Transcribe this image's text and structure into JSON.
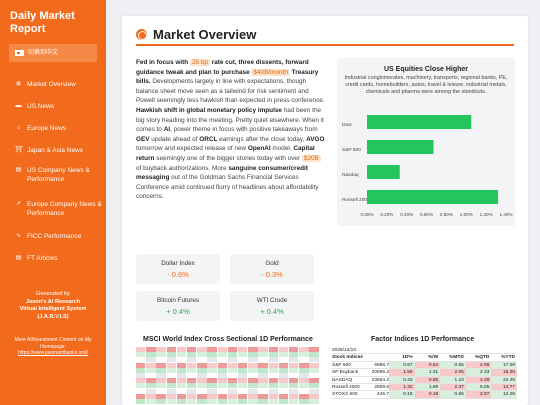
{
  "sidebar": {
    "brand": "Daily Market Report",
    "language_button": "切换到中文",
    "nav": [
      {
        "label": "Market Overview",
        "icon": "globe-icon",
        "glyph": "◍"
      },
      {
        "label": "US News",
        "icon": "flag-icon",
        "glyph": "▬"
      },
      {
        "label": "Europe News",
        "icon": "bank-icon",
        "glyph": "⌂"
      },
      {
        "label": "Japan & Asia News",
        "icon": "torii-icon",
        "glyph": "⛩"
      },
      {
        "label": "US Company News & Performance",
        "icon": "newspaper-icon",
        "glyph": "▤"
      },
      {
        "label": "Europe Company News & Performance",
        "icon": "rocket-icon",
        "glyph": "➚"
      },
      {
        "label": "FICC Performance",
        "icon": "chart-line-icon",
        "glyph": "∿"
      },
      {
        "label": "FT Articles",
        "icon": "newspaper-icon",
        "glyph": "▤"
      }
    ],
    "generated_by": "Generated by",
    "jasons": "Jason's AI Research",
    "assistant": "Virtual Intelligent System",
    "jarvis": "(J.A.R.V.I.S)",
    "more_info": "More AI/Investment Content on My Homepage:",
    "homepage": "https://www.jasonantbanks.xml/"
  },
  "main": {
    "title": "Market Overview",
    "article": {
      "p1": "Fed in focus with",
      "hl1": "25 bp",
      "p2": "rate cut, three dissents, forward guidance tweak and plan to purchase",
      "hl2": "$40B/month",
      "p3": "Treasury bills.",
      "p4": "Developments largely in line with expectations, though balance sheet move seen as a tailwind for risk sentiment and Powell seemingly less hawkish than expected in press conference.",
      "p5": "Hawkish shift in global monetary policy impulse",
      "p6": "had been the big story heading into the meeting. Pretty quiet elsewhere. When it comes to",
      "p7": "AI",
      "p8": ", power theme in focus with positive takeaways from",
      "p9": "GEV",
      "p10": "update ahead of",
      "p11": "ORCL",
      "p12": "earnings after the close today,",
      "p13": "AVGO",
      "p14": "tomorrow and expected release of new",
      "p15": "OpenAI",
      "p16": "model.",
      "p17": "Capital return",
      "p18": "seemingly one of the bigger stories today with over",
      "hl3": "$20B",
      "p19": "of buyback authorizations. More",
      "p20": "sanguine consumer/credit messaging",
      "p21": "out of the Goldman Sachs Financial Services Conference amid continued flurry of headlines about affordability concerns."
    },
    "tiles": [
      {
        "label": "Dollar Index",
        "value": "- 0.6%",
        "dir": "neg"
      },
      {
        "label": "Gold",
        "value": "- 0.3%",
        "dir": "neg"
      },
      {
        "label": "Bitcoin Futures",
        "value": "+ 0.4%",
        "dir": "pos"
      },
      {
        "label": "WTI Crude",
        "value": "+ 0.4%",
        "dir": "pos"
      }
    ],
    "bottom": {
      "msci_title": "MSCI World Index Cross Sectional 1D Performance",
      "factor_title": "Factor Indices 1D Performance",
      "factor_date": "2025/12/10",
      "factor_headers": [
        "Stock Indices",
        "1D%",
        "%/W",
        "%MTD",
        "%QTD",
        "%YTD"
      ],
      "factor_rows": [
        [
          "S&P 500",
          "6886.7",
          "0.67",
          "0.54",
          "0.55",
          "2.96",
          "17.09"
        ],
        [
          "SP Buyback",
          "20596.2",
          "1.56",
          "1.31",
          "2.05",
          "2.33",
          "16.26"
        ],
        [
          "NASDAQ",
          "23654.2",
          "0.33",
          "0.85",
          "1.23",
          "4.39",
          "22.49"
        ],
        [
          "Russell 2000",
          "2559.6",
          "1.32",
          "1.89",
          "2.37",
          "5.05",
          "14.77"
        ],
        [
          "STOXX 600",
          "445.7",
          "0.18",
          "0.18",
          "0.65",
          "2.97",
          "12.28"
        ]
      ]
    }
  },
  "chart_data": {
    "type": "bar",
    "orientation": "horizontal",
    "title": "US Equities Close Higher",
    "subtitle": "Industrial conglomerates, machinery, transports, regional banks, PE, credit cards, homebuilders, autos, travel & leisure, industrial metals, chemicals and pharma were among the standouts.",
    "categories": [
      "Dow",
      "S&P 500",
      "Nasdaq",
      "Russell 2000"
    ],
    "values": [
      1.05,
      0.67,
      0.33,
      1.32
    ],
    "xlim": [
      0,
      1.4
    ],
    "ticks": [
      "0.00%",
      "0.20%",
      "0.40%",
      "0.60%",
      "0.80%",
      "1.00%",
      "1.20%",
      "1.40%"
    ],
    "color": "#22c55e"
  }
}
